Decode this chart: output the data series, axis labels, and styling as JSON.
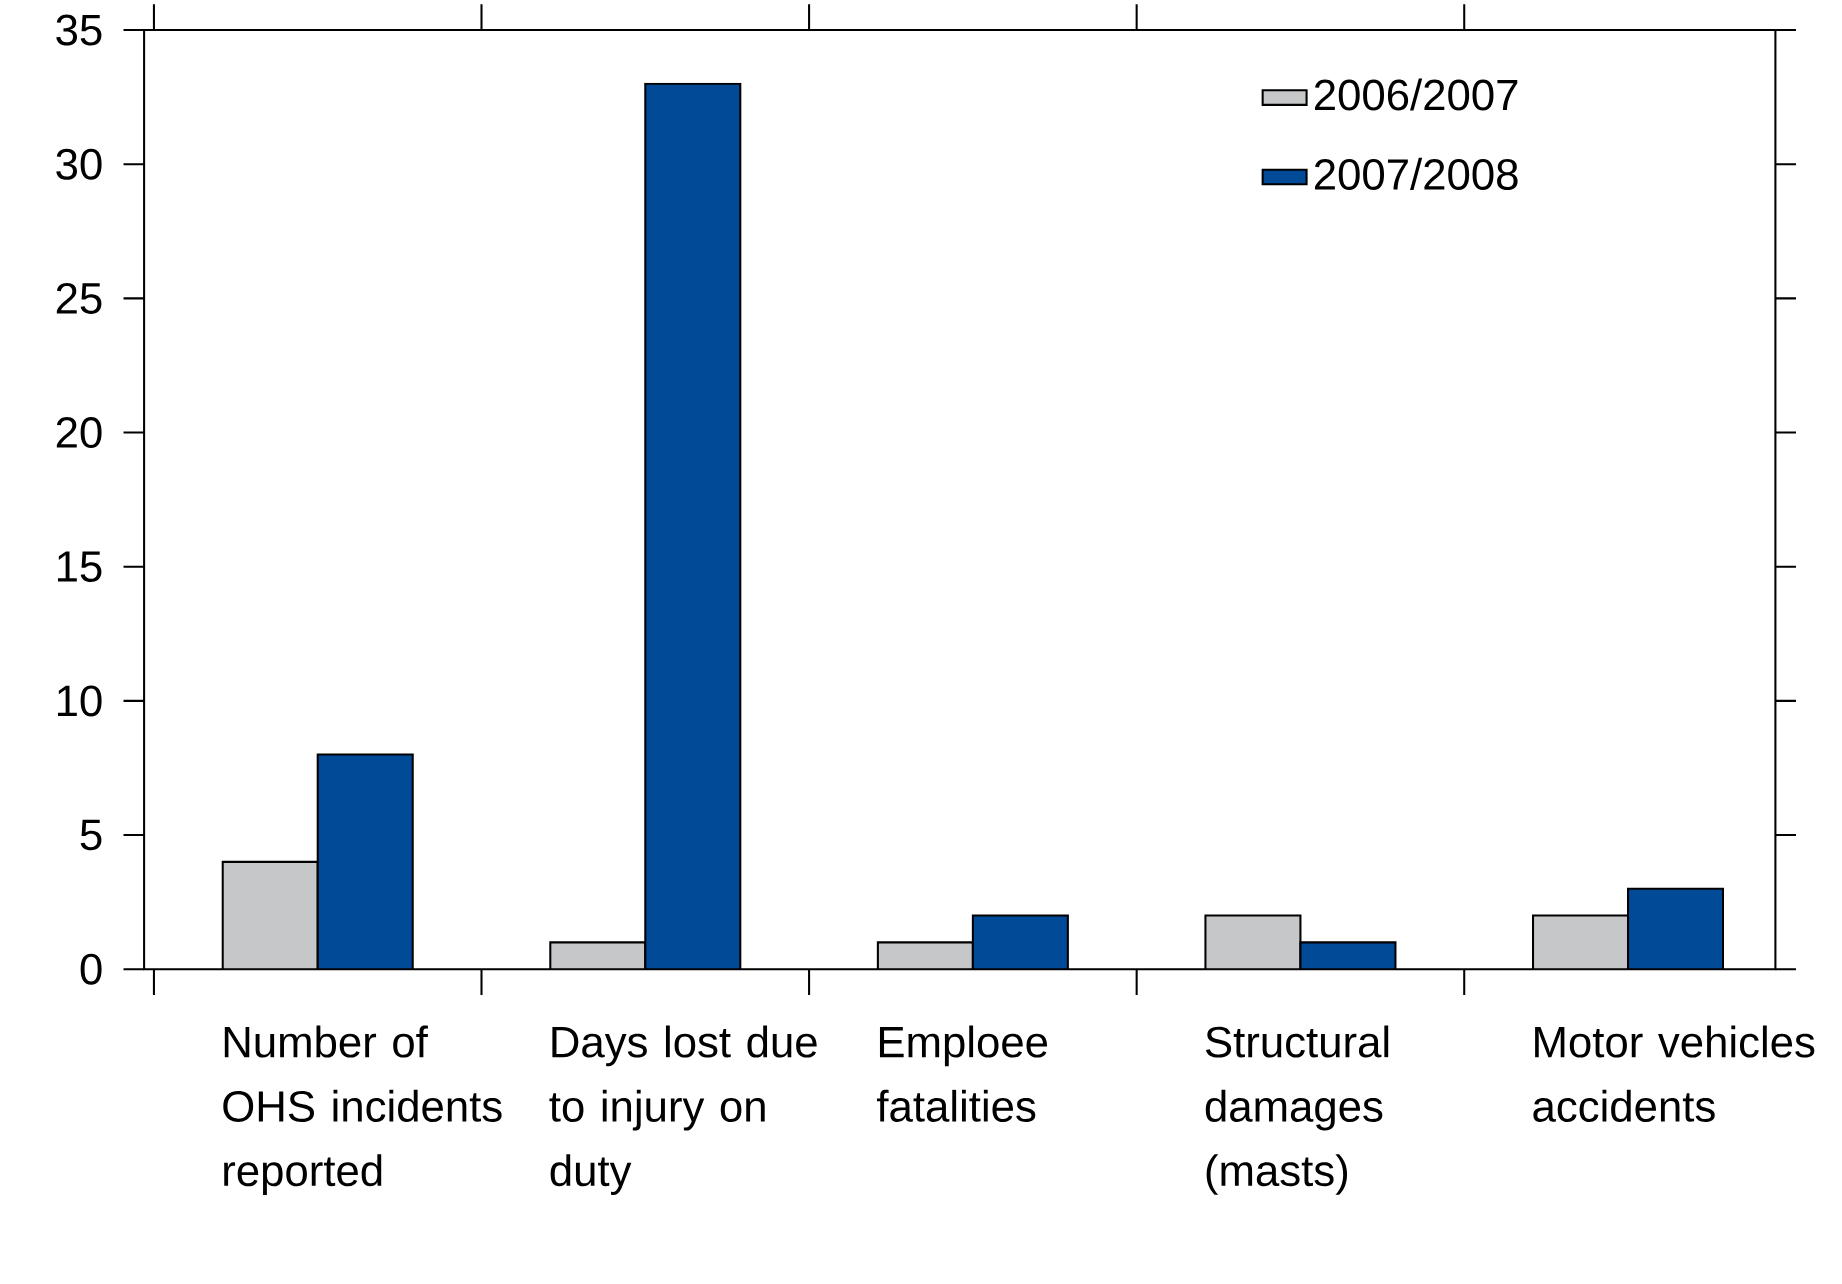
{
  "chart_data": {
    "type": "bar",
    "categories": [
      "Number of OHS incidents reported",
      "Days lost due to injury on duty",
      "Emploee fatalities",
      "Structural damages (masts)",
      "Motor vehicles accidents"
    ],
    "series": [
      {
        "name": "2006/2007",
        "color": "#c6c7c9",
        "values": [
          4,
          1,
          1,
          2,
          2
        ]
      },
      {
        "name": "2007/2008",
        "color": "#004a98",
        "values": [
          8,
          33,
          2,
          1,
          3
        ]
      }
    ],
    "ylim": [
      0,
      35
    ],
    "yticks": [
      0,
      5,
      10,
      15,
      20,
      25,
      30,
      35
    ],
    "grid": false,
    "legend": "top right"
  }
}
